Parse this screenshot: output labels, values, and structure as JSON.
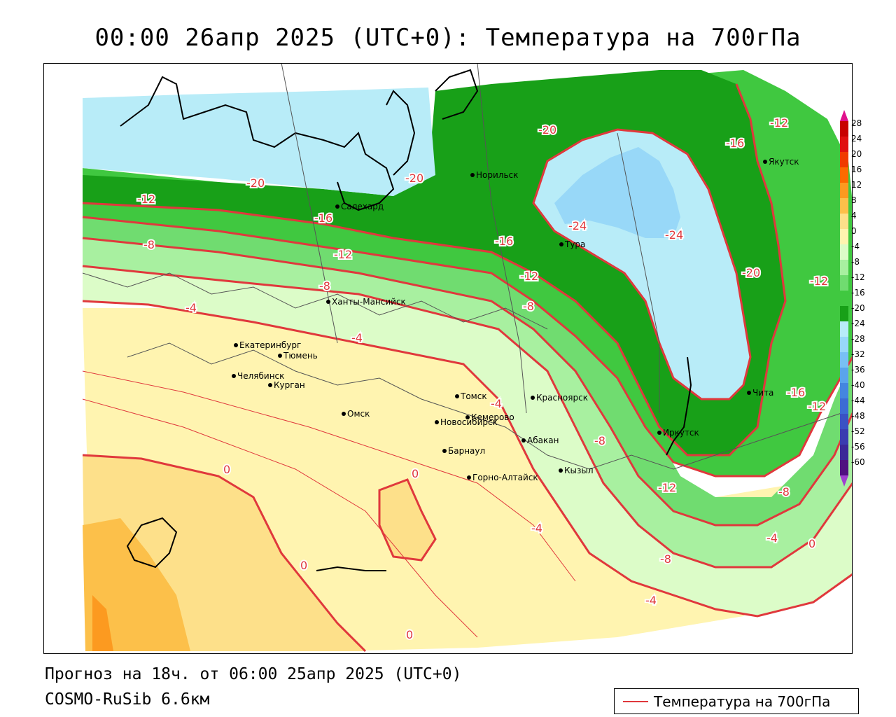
{
  "title": "00:00 26апр 2025 (UTC+0): Температура на 700гПа",
  "footer": {
    "forecast": "Прогноз на 18ч. от 06:00 25апр 2025 (UTC+0)",
    "model": "COSMO-RuSib 6.6км"
  },
  "legend": {
    "label": "Температура на 700гПа",
    "color": "#e0383c"
  },
  "colorbar": {
    "ticks": [
      "28",
      "24",
      "20",
      "16",
      "12",
      "8",
      "4",
      "0",
      "-4",
      "-8",
      "-12",
      "-16",
      "-20",
      "-24",
      "-28",
      "-32",
      "-36",
      "-40",
      "-44",
      "-48",
      "-52",
      "-56",
      "-60"
    ],
    "colors": [
      "#c80000",
      "#e01010",
      "#f03a00",
      "#fc6a00",
      "#fc9a20",
      "#fcc04a",
      "#fde08a",
      "#fff4b0",
      "#dcfcc8",
      "#a8f0a0",
      "#70dc70",
      "#40c840",
      "#18a018",
      "#b8ecf8",
      "#98d8f8",
      "#78c0f4",
      "#5aa4ec",
      "#4486e0",
      "#3c6cd4",
      "#3a52c4",
      "#3a3cb0",
      "#3a2898",
      "#501080"
    ],
    "top_arrow_color": "#e0108c",
    "bottom_arrow_color": "#a040d0"
  },
  "map": {
    "isotherm_labels": [
      {
        "text": "-20"
      },
      {
        "text": "-20"
      },
      {
        "text": "-20"
      },
      {
        "text": "-20"
      },
      {
        "text": "-12"
      },
      {
        "text": "-12"
      },
      {
        "text": "-12"
      },
      {
        "text": "-12"
      },
      {
        "text": "-12"
      },
      {
        "text": "-12"
      },
      {
        "text": "-12"
      },
      {
        "text": "-16"
      },
      {
        "text": "-16"
      },
      {
        "text": "-16"
      },
      {
        "text": "-16"
      },
      {
        "text": "-24"
      },
      {
        "text": "-24"
      },
      {
        "text": "-8"
      },
      {
        "text": "-8"
      },
      {
        "text": "-8"
      },
      {
        "text": "-8"
      },
      {
        "text": "-8"
      },
      {
        "text": "-8"
      },
      {
        "text": "-4"
      },
      {
        "text": "-4"
      },
      {
        "text": "-4"
      },
      {
        "text": "-4"
      },
      {
        "text": "-4"
      },
      {
        "text": "-4"
      },
      {
        "text": "0"
      },
      {
        "text": "0"
      },
      {
        "text": "0"
      },
      {
        "text": "0"
      },
      {
        "text": "0"
      }
    ],
    "cities": [
      {
        "name": "Норильск"
      },
      {
        "name": "Якутск"
      },
      {
        "name": "Салехард"
      },
      {
        "name": "Тура"
      },
      {
        "name": "Ханты-Мансийск"
      },
      {
        "name": "Екатеринбург"
      },
      {
        "name": "Тюмень"
      },
      {
        "name": "Челябинск"
      },
      {
        "name": "Курган"
      },
      {
        "name": "Омск"
      },
      {
        "name": "Новосибирск"
      },
      {
        "name": "Томск"
      },
      {
        "name": "Кемерово"
      },
      {
        "name": "Красноярск"
      },
      {
        "name": "Барнаул"
      },
      {
        "name": "Абакан"
      },
      {
        "name": "Горно-Алтайск"
      },
      {
        "name": "Кызыл"
      },
      {
        "name": "Иркутск"
      },
      {
        "name": "Чита"
      }
    ]
  }
}
